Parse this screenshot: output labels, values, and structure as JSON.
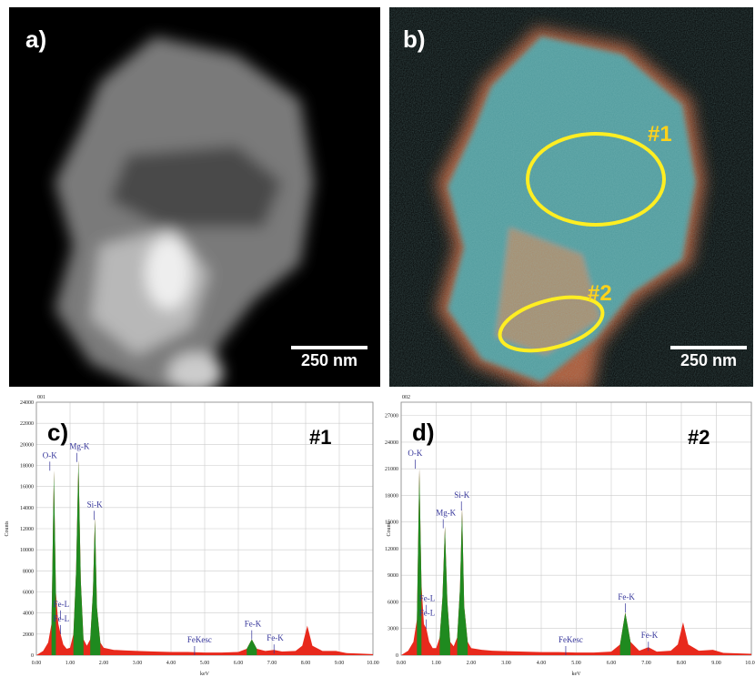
{
  "images": [
    {
      "label": "a)",
      "scale": "250 nm"
    },
    {
      "label": "b)",
      "scale": "250 nm",
      "regions": [
        "#1",
        "#2"
      ]
    }
  ],
  "chart_data": [
    {
      "type": "area",
      "panel_id": "001",
      "label": "c)",
      "region": "#1",
      "x_label": "keV",
      "y_label": "Counts",
      "grid": true,
      "x": [
        0,
        0.2,
        0.35,
        0.45,
        0.52,
        0.58,
        0.65,
        0.72,
        0.8,
        0.9,
        1.0,
        1.1,
        1.18,
        1.25,
        1.32,
        1.4,
        1.5,
        1.6,
        1.68,
        1.74,
        1.8,
        1.9,
        2.0,
        2.3,
        2.6,
        3.0,
        3.5,
        4.0,
        4.5,
        5.0,
        5.5,
        6.0,
        6.25,
        6.4,
        6.55,
        6.8,
        7.06,
        7.3,
        7.7,
        7.9,
        8.05,
        8.2,
        8.5,
        8.9,
        9.2,
        9.6,
        10.0
      ],
      "series": [
        {
          "color": "#e8291c",
          "values": [
            0,
            400,
            1200,
            3000,
            17500,
            6000,
            3000,
            2000,
            1000,
            600,
            700,
            2000,
            8000,
            18500,
            7000,
            1500,
            900,
            1500,
            6000,
            13000,
            4500,
            1200,
            700,
            500,
            450,
            400,
            350,
            300,
            300,
            250,
            250,
            300,
            600,
            1500,
            600,
            400,
            500,
            350,
            400,
            900,
            2800,
            900,
            400,
            400,
            200,
            150,
            100
          ]
        },
        {
          "color": "#1f8a1f",
          "values": [
            null,
            null,
            null,
            3000,
            17500,
            6000,
            null,
            null,
            null,
            null,
            null,
            2000,
            8000,
            18500,
            7000,
            1500,
            null,
            1500,
            6000,
            13000,
            4500,
            1200,
            null,
            null,
            null,
            null,
            null,
            null,
            null,
            null,
            null,
            null,
            600,
            1500,
            600,
            null,
            null,
            null,
            null,
            null,
            null,
            null,
            null,
            null,
            null,
            null,
            null
          ]
        }
      ],
      "annotations": [
        "O-K",
        "Mg-K",
        "Si-K",
        "Fe-L",
        "Fe-L",
        "FeKesc",
        "Fe-K",
        "Fe-K"
      ],
      "xlim": [
        0,
        10
      ],
      "xticks": [
        {
          "value": 0,
          "label": "0.00"
        },
        {
          "value": 1,
          "label": "1.00"
        },
        {
          "value": 2,
          "label": "2.00"
        },
        {
          "value": 3,
          "label": "3.00"
        },
        {
          "value": 4,
          "label": "4.00"
        },
        {
          "value": 5,
          "label": "5.00"
        },
        {
          "value": 6,
          "label": "6.00"
        },
        {
          "value": 7,
          "label": "7.00"
        },
        {
          "value": 8,
          "label": "8.00"
        },
        {
          "value": 9,
          "label": "9.00"
        },
        {
          "value": 10,
          "label": "10.00"
        }
      ],
      "ylim": [
        0,
        24000
      ],
      "yticks": [
        0,
        2000,
        4000,
        6000,
        8000,
        10000,
        12000,
        14000,
        16000,
        18000,
        20000,
        22000,
        24000
      ]
    },
    {
      "type": "area",
      "panel_id": "002",
      "label": "d)",
      "region": "#2",
      "x_label": "keV",
      "y_label": "Counts",
      "grid": true,
      "x": [
        0,
        0.2,
        0.35,
        0.45,
        0.52,
        0.58,
        0.65,
        0.72,
        0.8,
        0.9,
        1.0,
        1.1,
        1.18,
        1.25,
        1.32,
        1.4,
        1.5,
        1.6,
        1.68,
        1.74,
        1.8,
        1.9,
        2.0,
        2.3,
        2.6,
        3.0,
        3.5,
        4.0,
        4.5,
        5.0,
        5.5,
        6.0,
        6.25,
        6.4,
        6.55,
        6.8,
        7.06,
        7.3,
        7.7,
        7.9,
        8.05,
        8.2,
        8.5,
        8.9,
        9.2,
        9.6,
        10.0
      ],
      "series": [
        {
          "color": "#e8291c",
          "values": [
            0,
            500,
            1500,
            4000,
            21000,
            8000,
            3500,
            3000,
            1500,
            800,
            800,
            2000,
            6500,
            14500,
            6000,
            1500,
            1000,
            2000,
            7500,
            16500,
            5500,
            1500,
            800,
            600,
            500,
            450,
            400,
            350,
            350,
            300,
            300,
            400,
            1200,
            4800,
            1500,
            500,
            900,
            400,
            500,
            1200,
            3700,
            1200,
            500,
            600,
            250,
            200,
            150
          ]
        },
        {
          "color": "#1f8a1f",
          "values": [
            null,
            null,
            null,
            4000,
            21000,
            8000,
            null,
            null,
            null,
            null,
            null,
            2000,
            6500,
            14500,
            6000,
            1500,
            null,
            2000,
            7500,
            16500,
            5500,
            1500,
            null,
            null,
            null,
            null,
            null,
            null,
            null,
            null,
            null,
            null,
            1200,
            4800,
            1500,
            null,
            null,
            null,
            null,
            null,
            null,
            null,
            null,
            null,
            null,
            null,
            null
          ]
        }
      ],
      "annotations": [
        "O-K",
        "Mg-K",
        "Si-K",
        "Fe-L",
        "Fe-L",
        "FeKesc",
        "Fe-K",
        "Fe-K"
      ],
      "xlim": [
        0,
        10
      ],
      "xticks": [
        {
          "value": 0,
          "label": "0.00"
        },
        {
          "value": 1,
          "label": "1.00"
        },
        {
          "value": 2,
          "label": "2.00"
        },
        {
          "value": 3,
          "label": "3.00"
        },
        {
          "value": 4,
          "label": "4.00"
        },
        {
          "value": 5,
          "label": "5.00"
        },
        {
          "value": 6,
          "label": "6.00"
        },
        {
          "value": 7,
          "label": "7.00"
        },
        {
          "value": 8,
          "label": "8.00"
        },
        {
          "value": 9,
          "label": "9.00"
        },
        {
          "value": 10,
          "label": "10.00"
        }
      ],
      "ylim": [
        0,
        28500
      ],
      "yticks": [
        0,
        3000,
        6000,
        9000,
        12000,
        15000,
        18000,
        21000,
        24000,
        27000
      ]
    }
  ]
}
